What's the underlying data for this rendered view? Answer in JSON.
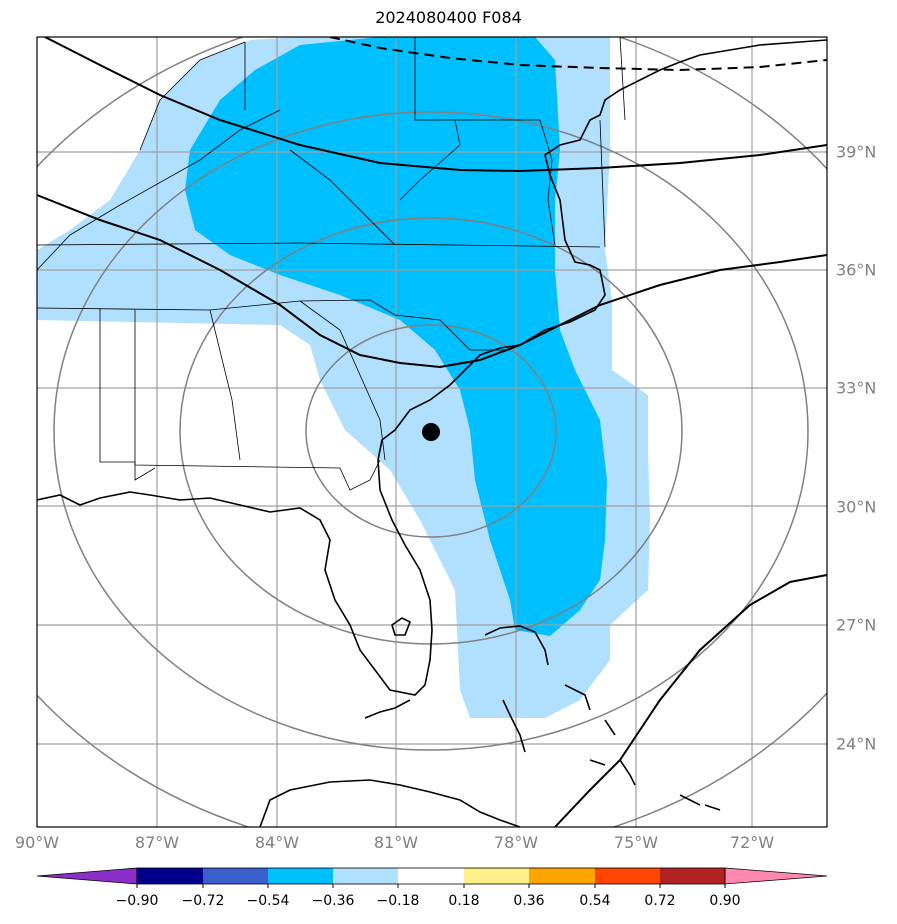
{
  "title": "2024080400 F084",
  "lon_labels": [
    "90°W",
    "87°W",
    "84°W",
    "81°W",
    "78°W",
    "75°W",
    "72°W"
  ],
  "lat_labels": [
    "39°N",
    "36°N",
    "33°N",
    "30°N",
    "27°N",
    "24°N"
  ],
  "colorbar": {
    "ticks": [
      "−0.90",
      "−0.72",
      "−0.54",
      "−0.36",
      "−0.18",
      "0.18",
      "0.36",
      "0.54",
      "0.72",
      "0.90"
    ],
    "colors": [
      "#8b2fc9",
      "#00008b",
      "#3a5fcd",
      "#00bfff",
      "#b0e0fe",
      "#ffffff",
      "#fff08c",
      "#ffa500",
      "#ff4500",
      "#b22222",
      "#ff88b0"
    ]
  },
  "map": {
    "extent_lon": [
      -90,
      -70
    ],
    "extent_lat": [
      22,
      42
    ],
    "center_marker": {
      "lon": -80.1,
      "lat": 31.9
    },
    "shading_colors": {
      "light": "#b0e0fe",
      "mid": "#00bfff"
    }
  }
}
